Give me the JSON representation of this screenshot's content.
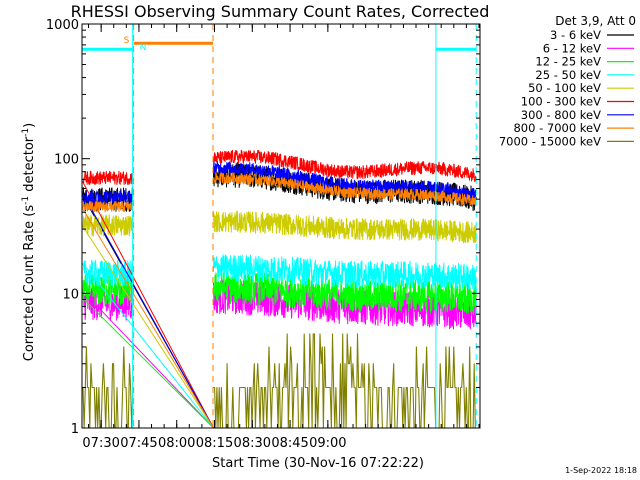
{
  "chart_data": {
    "type": "line",
    "title": "RHESSI Observing Summary Count Rates, Corrected",
    "ylabel": "Corrected Count Rate (s",
    "ylabel_mid": "-1",
    "ylabel_b": " detector",
    "ylabel_sup2": "-1",
    "ylabel_end": ")",
    "xlabel": "Start Time (30-Nov-16 07:22:22)",
    "footer": "1-Sep-2022 18:18",
    "yscale": "log",
    "ylim": [
      1,
      1000
    ],
    "xlim_minutes": [
      0,
      158
    ],
    "yticks": [
      {
        "v": 1,
        "label": "1"
      },
      {
        "v": 10,
        "label": "10"
      },
      {
        "v": 100,
        "label": "100"
      },
      {
        "v": 1000,
        "label": "1000"
      }
    ],
    "xticks": [
      {
        "label": "07:30",
        "t": 7.6
      },
      {
        "label": "07:45",
        "t": 22.6
      },
      {
        "label": "08:00",
        "t": 37.6
      },
      {
        "label": "08:15",
        "t": 52.6
      },
      {
        "label": "08:30",
        "t": 67.6
      },
      {
        "label": "08:45",
        "t": 82.6
      },
      {
        "label": "09:00",
        "t": 97.6
      }
    ],
    "legend_header": "Det 3,9, Att 0",
    "legend_position": "right",
    "series": [
      {
        "name": "3 - 6 keV",
        "color": "#000000",
        "seg1": 50,
        "seg2_start": 75,
        "seg2_end": 50,
        "bump": 0.05,
        "noise": 0.09
      },
      {
        "name": "6 - 12 keV",
        "color": "#ff00ff",
        "seg1": 8.5,
        "seg2_start": 9.5,
        "seg2_end": 7.0,
        "bump": 0.02,
        "noise": 0.13
      },
      {
        "name": "12 - 25 keV",
        "color": "#00ff00",
        "seg1": 10.5,
        "seg2_start": 11,
        "seg2_end": 9.0,
        "bump": 0.02,
        "noise": 0.12
      },
      {
        "name": "25 - 50 keV",
        "color": "#00ffff",
        "seg1": 14,
        "seg2_start": 15.5,
        "seg2_end": 13,
        "bump": 0.02,
        "noise": 0.1
      },
      {
        "name": "50 - 100 keV",
        "color": "#cccc00",
        "seg1": 32,
        "seg2_start": 34,
        "seg2_end": 28,
        "bump": 0.02,
        "noise": 0.08
      },
      {
        "name": "100 - 300 keV",
        "color": "#ff0000",
        "seg1": 72,
        "seg2_start": 100,
        "seg2_end": 75,
        "bump": 0.08,
        "noise": 0.05
      },
      {
        "name": "300 - 800 keV",
        "color": "#0000ff",
        "seg1": 52,
        "seg2_start": 85,
        "seg2_end": 53,
        "bump": 0.05,
        "noise": 0.05
      },
      {
        "name": "800 - 7000 keV",
        "color": "#ff8000",
        "seg1": 44,
        "seg2_start": 72,
        "seg2_end": 48,
        "bump": 0.04,
        "noise": 0.04
      },
      {
        "name": "7000 - 15000 keV",
        "color": "#808000",
        "seg1": 2,
        "seg2_start": 2,
        "seg2_end": 2,
        "bump": 0,
        "noise": 0.3
      }
    ],
    "gaps": [
      {
        "start": 20.5,
        "end": 52.0
      },
      {
        "start": 140.5,
        "end": 156.5
      }
    ],
    "flag_lines": [
      {
        "label": "S",
        "t": 20.5,
        "color": "#ff8000",
        "style": "dashed"
      },
      {
        "label": "N",
        "t": 20.5,
        "color": "#00ffff",
        "style": "solid"
      },
      {
        "label": "",
        "t": 52.0,
        "color": "#ff8000",
        "style": "dashed"
      },
      {
        "label": "",
        "t": 140.5,
        "color": "#00ffff",
        "style": "solid"
      },
      {
        "label": "",
        "t": 156.5,
        "color": "#00ffff",
        "style": "dashed"
      }
    ],
    "flag_bars": [
      {
        "t0": 0,
        "t1": 20.5,
        "v": 650,
        "color": "#00ffff"
      },
      {
        "t0": 20.5,
        "t1": 52.0,
        "v": 720,
        "color": "#ff8000"
      },
      {
        "t0": 140.5,
        "t1": 156.5,
        "v": 650,
        "color": "#00ffff"
      }
    ]
  }
}
